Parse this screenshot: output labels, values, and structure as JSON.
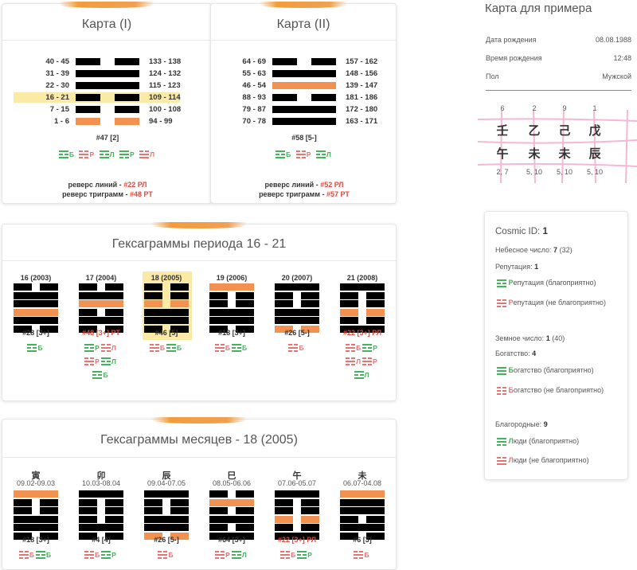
{
  "karta1": {
    "title": "Карта (I)",
    "left_labels": [
      "40 - 45",
      "31 - 39",
      "22 - 30",
      "16 - 21",
      "7 - 15",
      "1 - 6"
    ],
    "right_labels": [
      "133 - 138",
      "124 - 132",
      "115 - 123",
      "109 - 114",
      "100 - 108",
      "94 - 99"
    ],
    "hex_num": "#47 [2]",
    "trig_labels": [
      "Б",
      "Р",
      "Л",
      "Р",
      "Л"
    ],
    "rev_lines_label": "реверс линий -",
    "rev_lines_val": "#22 РЛ",
    "rev_tri_label": "реверс триграмм -",
    "rev_tri_val": "#48 РТ"
  },
  "karta2": {
    "title": "Карта (II)",
    "left_labels": [
      "64 - 69",
      "55 - 63",
      "46 - 54",
      "88 - 93",
      "79 - 87",
      "70 - 78"
    ],
    "right_labels": [
      "157 - 162",
      "148 - 156",
      "139 - 147",
      "181 - 186",
      "172 - 180",
      "163 - 171"
    ],
    "hex_num": "#58 [5-]",
    "trig_labels": [
      "Б",
      "Р",
      "Л"
    ],
    "rev_lines_label": "реверс линий -",
    "rev_lines_val": "#52 РЛ",
    "rev_tri_label": "реверс триграмм -",
    "rev_tri_val": "#57 РТ"
  },
  "period": {
    "title": "Гексаграммы периода 16 - 21",
    "cols": [
      {
        "year": "16 (2003)",
        "num": "#28 [3+]"
      },
      {
        "year": "17 (2004)",
        "num": "#48 [3+] РТ"
      },
      {
        "year": "18 (2005)",
        "num": "#46 [5]"
      },
      {
        "year": "19 (2006)",
        "num": "#18 [3+]"
      },
      {
        "year": "20 (2007)",
        "num": "#26 [5-]"
      },
      {
        "year": "21 (2008)",
        "num": "#22 [3+] РЛ"
      }
    ]
  },
  "months": {
    "title": "Гексаграммы месяцев - 18 (2005)",
    "cols": [
      {
        "char": "寅",
        "dates": "09.02-09.03",
        "num": "#18 [3+]"
      },
      {
        "char": "卯",
        "dates": "10.03-08.04",
        "num": "#4 [4]"
      },
      {
        "char": "辰",
        "dates": "09.04-07.05",
        "num": "#26 [5-]"
      },
      {
        "char": "巳",
        "dates": "08.05-06.06",
        "num": "#64 [3+]"
      },
      {
        "char": "午",
        "dates": "07.06-05.07",
        "num": "#22 [3+] РЛ"
      },
      {
        "char": "未",
        "dates": "06.07-04.08",
        "num": "#6 [3]"
      }
    ]
  },
  "marks": {
    "b": "Б",
    "p": "Р",
    "l": "Л"
  },
  "example": {
    "title": "Карта для примера",
    "birth_date_label": "Дата рождения",
    "birth_date": "08.08.1988",
    "birth_time_label": "Время рождения",
    "birth_time": "12:48",
    "sex_label": "Пол",
    "sex": "Мужской",
    "top_nums": [
      "6",
      "2",
      "9",
      "1"
    ],
    "stems": [
      "壬",
      "乙",
      "己",
      "戊"
    ],
    "branches": [
      "午",
      "未",
      "未",
      "辰"
    ],
    "bottom_nums": [
      "2, 7",
      "5, 10",
      "5, 10",
      "5, 10"
    ]
  },
  "cosmic": {
    "id_label": "Cosmic ID:",
    "id_val": "1",
    "heaven_label": "Небесное число:",
    "heaven_val": "7",
    "heaven_extra": "(32)",
    "rep_label": "Репутация:",
    "rep_val": "1",
    "rep_good": "епутация (благоприятно)",
    "rep_bad": "епутация (не благоприятно)",
    "rep_letter": "Р",
    "earth_label": "Земное число:",
    "earth_val": "1",
    "earth_extra": "(40)",
    "wealth_label": "Богатство:",
    "wealth_val": "4",
    "wealth_good": "огатство (благоприятно)",
    "wealth_bad": "огатство (не благоприятно)",
    "wealth_letter": "Б",
    "noble_label": "Благородные:",
    "noble_val": "9",
    "people_good": "юди (благоприятно)",
    "people_bad": "юди (не благоприятно)",
    "people_letter": "Л"
  },
  "colors": {
    "black": "#000000",
    "orange": "#f39150",
    "green": "#45b35d",
    "red": "#e87373",
    "highlight": "#fbe9a6"
  }
}
